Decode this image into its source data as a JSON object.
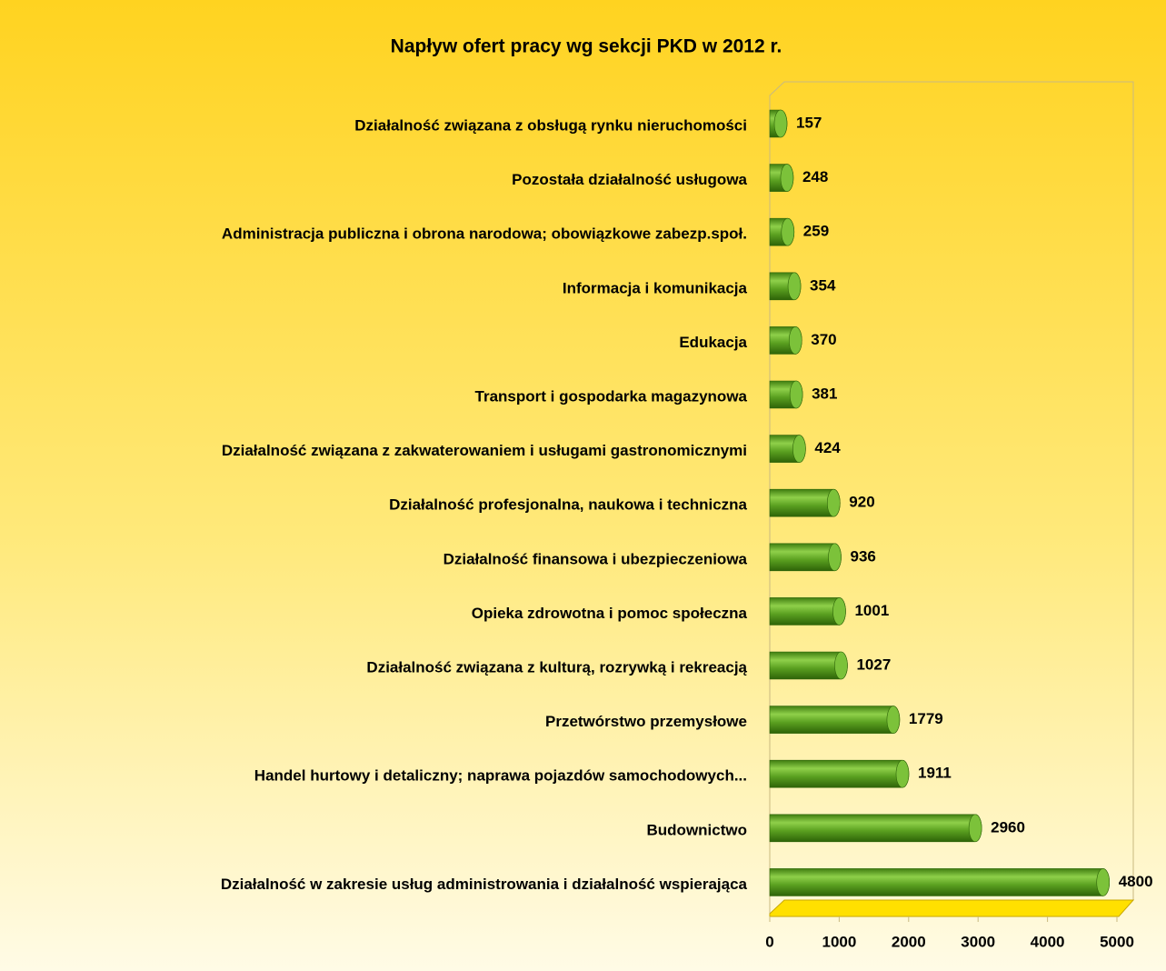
{
  "chart_data": {
    "type": "bar",
    "orientation": "horizontal",
    "title": "Napływ ofert pracy wg sekcji PKD w 2012 r.",
    "categories": [
      "Działalność związana z obsługą rynku nieruchomości",
      "Pozostała działalność usługowa",
      "Administracja publiczna i obrona narodowa; obowiązkowe zabezp.społ.",
      "Informacja i komunikacja",
      "Edukacja",
      "Transport i gospodarka magazynowa",
      "Działalność związana z zakwaterowaniem i usługami gastronomicznymi",
      "Działalność profesjonalna, naukowa i techniczna",
      "Działalność finansowa i ubezpieczeniowa",
      "Opieka zdrowotna i pomoc społeczna",
      "Działalność związana z kulturą, rozrywką i rekreacją",
      "Przetwórstwo przemysłowe",
      "Handel hurtowy i detaliczny; naprawa pojazdów samochodowych...",
      "Budownictwo",
      "Działalność w zakresie usług administrowania i działalność wspierająca"
    ],
    "values": [
      157,
      248,
      259,
      354,
      370,
      381,
      424,
      920,
      936,
      1001,
      1027,
      1779,
      1911,
      2960,
      4800
    ],
    "color": "#5aa020",
    "xlim": [
      0,
      5000
    ],
    "xticks": [
      0,
      1000,
      2000,
      3000,
      4000,
      5000
    ],
    "grid": false
  }
}
